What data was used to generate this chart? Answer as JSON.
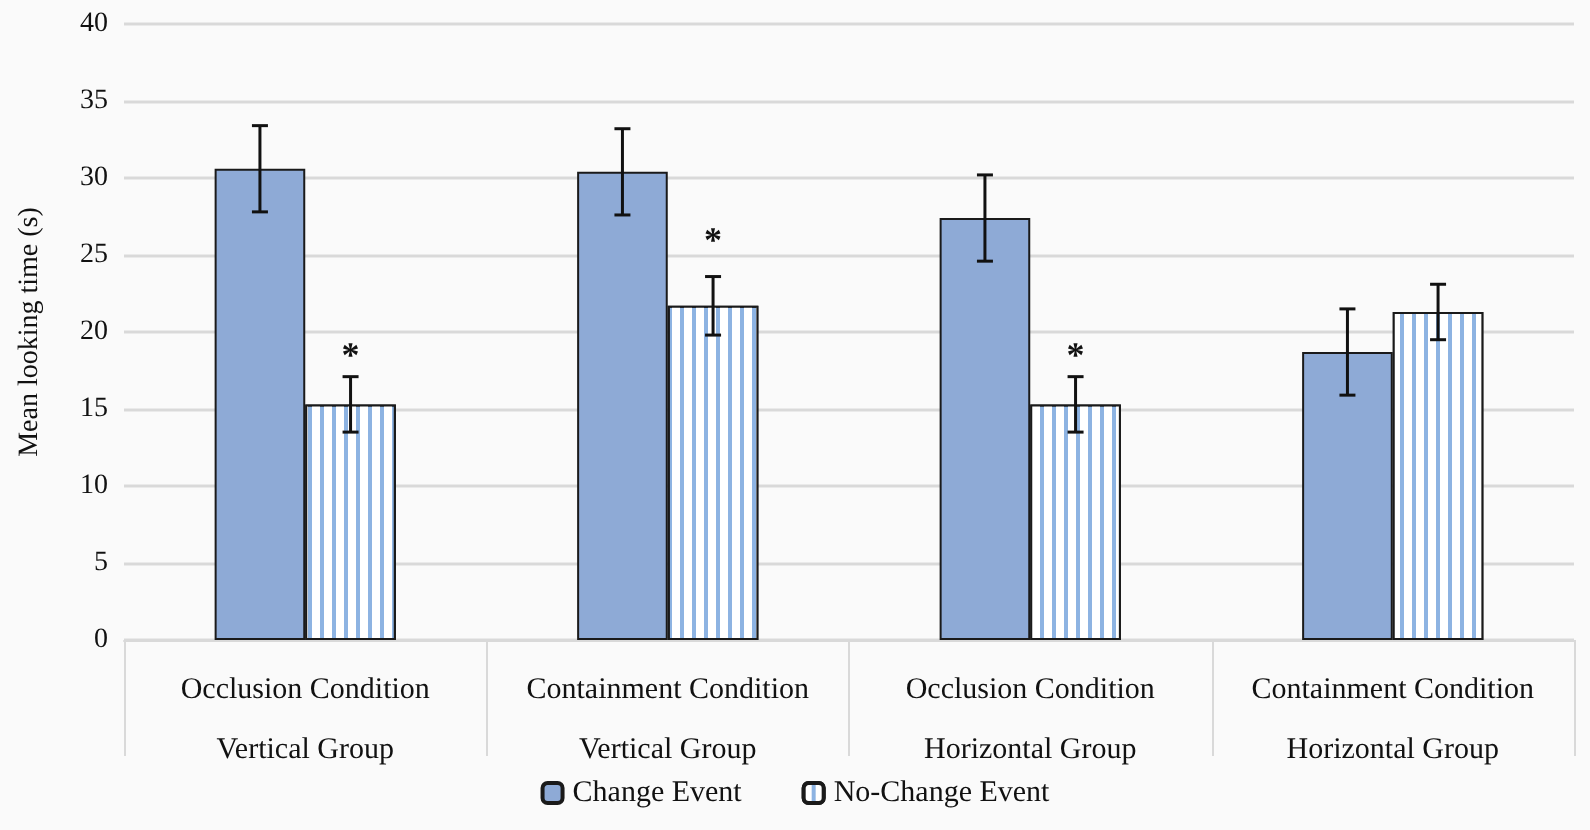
{
  "chart_data": {
    "type": "bar",
    "ylabel": "Mean looking time (s)",
    "categories": [
      "Occlusion Condition\nVertical Group",
      "Containment Condition\nVertical Group",
      "Occlusion Condition\nHorizontal Group",
      "Containment Condition\nHorizontal Group"
    ],
    "series": [
      {
        "name": "Change Event",
        "color": "#8eaad6",
        "values": [
          30.6,
          30.4,
          27.4,
          18.7
        ],
        "errors": [
          2.8,
          2.8,
          2.8,
          2.8
        ]
      },
      {
        "name": "No-Change Event",
        "color": "#8db3e2",
        "values": [
          15.3,
          21.7,
          15.3,
          21.3
        ],
        "errors": [
          1.8,
          1.9,
          1.8,
          1.8
        ]
      }
    ],
    "annotations": [
      {
        "text": "*",
        "x": "Occlusion Condition\nVertical Group",
        "y": 18.5
      },
      {
        "text": "*",
        "x": "Containment Condition\nVertical Group",
        "y": 26
      },
      {
        "text": "*",
        "x": "Occlusion Condition\nHorizontal Group",
        "y": 18.5
      }
    ],
    "ylim": [
      0,
      40
    ],
    "yticks": [
      0,
      5,
      10,
      15,
      20,
      25,
      30,
      35,
      40
    ],
    "grid": "y",
    "legend": "bottom"
  }
}
